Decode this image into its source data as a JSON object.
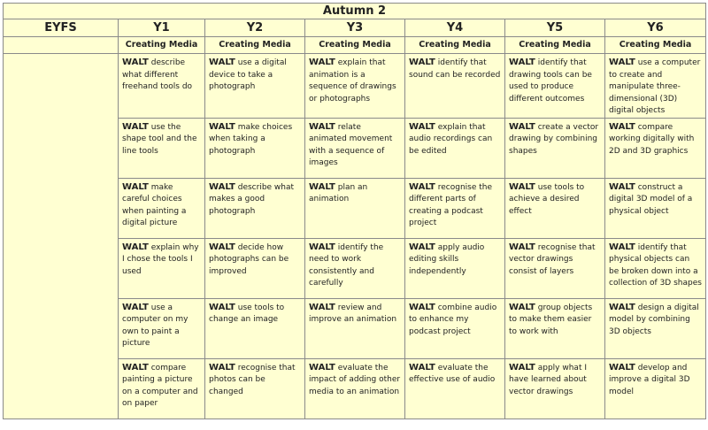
{
  "title": "Autumn 2",
  "years": [
    "EYFS",
    "Y1",
    "Y2",
    "Y3",
    "Y4",
    "Y5",
    "Y6"
  ],
  "subject": [
    "",
    "Creating Media",
    "Creating Media",
    "Creating Media",
    "Creating Media",
    "Creating Media",
    "Creating Media"
  ],
  "prefix": "WALT",
  "rows": [
    [
      "",
      "describe what different freehand tools do",
      "use a digital device to take a photograph",
      "explain that animation is a sequence of drawings or photographs",
      "identify that sound can be recorded",
      "identify that drawing tools can be used to produce different outcomes",
      "use a computer to create and manipulate three-dimensional (3D) digital objects"
    ],
    [
      "",
      "use the shape tool and the line tools",
      "make choices when taking a photograph",
      "relate animated movement with a sequence of images",
      "explain that audio recordings can be edited",
      "create a vector drawing by combining shapes",
      "compare working digitally with 2D and 3D graphics"
    ],
    [
      "",
      "make careful choices when painting a digital picture",
      "describe what makes a good photograph",
      "plan an animation",
      "recognise the different parts of creating a podcast project",
      "use tools to achieve a desired effect",
      "construct a digital 3D model of a physical object"
    ],
    [
      "",
      "explain why I chose the tools I used",
      "decide how photographs can be improved",
      "identify the need to work consistently and carefully",
      "apply audio editing skills independently",
      "recognise that vector drawings consist of layers",
      "identify that physical objects can be broken down into a collection of 3D shapes"
    ],
    [
      "",
      "use a computer on my own to paint a picture",
      "use tools to change an image",
      "review and improve an animation",
      "combine audio to enhance my podcast project",
      "group objects to make them easier to work with",
      "design a digital model by combining 3D objects"
    ],
    [
      "",
      "compare painting a picture on a computer and on paper",
      "recognise that photos can be changed",
      "evaluate the impact of adding other media to an animation",
      "evaluate the effective use of audio",
      "apply what I have learned about vector drawings",
      "develop and improve a digital 3D model"
    ]
  ],
  "colors": {
    "background": "#ffffd2",
    "border": "#8a8a8a"
  }
}
